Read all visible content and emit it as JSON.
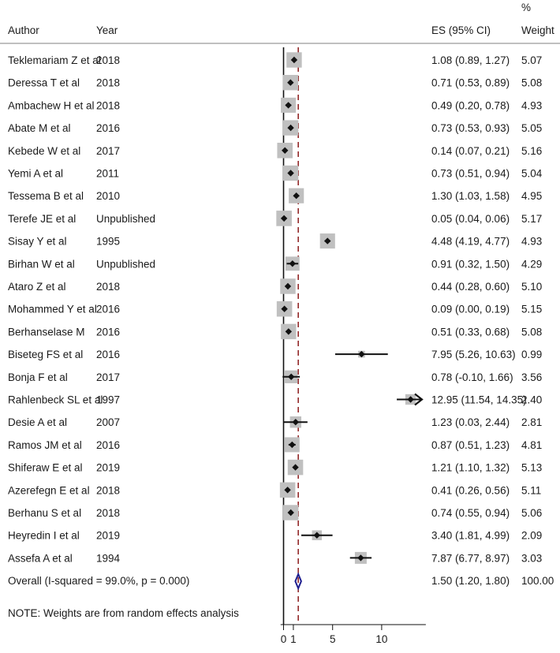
{
  "chart_data": {
    "type": "forest",
    "headers": {
      "author": "Author",
      "year": "Year",
      "es": "ES (95% CI)",
      "weight_top": "%",
      "weight": "Weight"
    },
    "studies": [
      {
        "author": "Teklemariam Z et al",
        "year": "2018",
        "es": 1.08,
        "lo": 0.89,
        "hi": 1.27,
        "ci_text": "1.08 (0.89, 1.27)",
        "weight": "5.07"
      },
      {
        "author": "Deressa T et al",
        "year": "2018",
        "es": 0.71,
        "lo": 0.53,
        "hi": 0.89,
        "ci_text": "0.71 (0.53, 0.89)",
        "weight": "5.08"
      },
      {
        "author": "Ambachew H et al",
        "year": "2018",
        "es": 0.49,
        "lo": 0.2,
        "hi": 0.78,
        "ci_text": "0.49 (0.20, 0.78)",
        "weight": "4.93"
      },
      {
        "author": "Abate M et al",
        "year": "2016",
        "es": 0.73,
        "lo": 0.53,
        "hi": 0.93,
        "ci_text": "0.73 (0.53, 0.93)",
        "weight": "5.05"
      },
      {
        "author": "Kebede W et al",
        "year": "2017",
        "es": 0.14,
        "lo": 0.07,
        "hi": 0.21,
        "ci_text": "0.14 (0.07, 0.21)",
        "weight": "5.16"
      },
      {
        "author": "Yemi A et al",
        "year": "2011",
        "es": 0.73,
        "lo": 0.51,
        "hi": 0.94,
        "ci_text": "0.73 (0.51, 0.94)",
        "weight": "5.04"
      },
      {
        "author": "Tessema B et al",
        "year": "2010",
        "es": 1.3,
        "lo": 1.03,
        "hi": 1.58,
        "ci_text": "1.30 (1.03, 1.58)",
        "weight": "4.95"
      },
      {
        "author": "Terefe JE et al",
        "year": "Unpublished",
        "es": 0.05,
        "lo": 0.04,
        "hi": 0.06,
        "ci_text": "0.05 (0.04, 0.06)",
        "weight": "5.17"
      },
      {
        "author": "Sisay Y et al",
        "year": "1995",
        "es": 4.48,
        "lo": 4.19,
        "hi": 4.77,
        "ci_text": "4.48 (4.19, 4.77)",
        "weight": "4.93"
      },
      {
        "author": "Birhan W et al",
        "year": "Unpublished",
        "es": 0.91,
        "lo": 0.32,
        "hi": 1.5,
        "ci_text": "0.91 (0.32, 1.50)",
        "weight": "4.29"
      },
      {
        "author": "Ataro Z et al",
        "year": "2018",
        "es": 0.44,
        "lo": 0.28,
        "hi": 0.6,
        "ci_text": "0.44 (0.28, 0.60)",
        "weight": "5.10"
      },
      {
        "author": "Mohammed Y et al",
        "year": "2016",
        "es": 0.09,
        "lo": 0.0,
        "hi": 0.19,
        "ci_text": "0.09 (0.00, 0.19)",
        "weight": "5.15"
      },
      {
        "author": "Berhanselase M",
        "year": "2016",
        "es": 0.51,
        "lo": 0.33,
        "hi": 0.68,
        "ci_text": "0.51 (0.33, 0.68)",
        "weight": "5.08"
      },
      {
        "author": "Biseteg FS et al",
        "year": "2016",
        "es": 7.95,
        "lo": 5.26,
        "hi": 10.63,
        "ci_text": "7.95 (5.26, 10.63)",
        "weight": "0.99"
      },
      {
        "author": "Bonja F et al",
        "year": "2017",
        "es": 0.78,
        "lo": -0.1,
        "hi": 1.66,
        "ci_text": "0.78 (-0.10, 1.66)",
        "weight": "3.56"
      },
      {
        "author": "Rahlenbeck SL et al",
        "year": "1997",
        "es": 12.95,
        "lo": 11.54,
        "hi": 14.35,
        "ci_text": "12.95 (11.54, 14.35)",
        "weight": "2.40",
        "arrow": true
      },
      {
        "author": "Desie A et al",
        "year": "2007",
        "es": 1.23,
        "lo": 0.03,
        "hi": 2.44,
        "ci_text": "1.23 (0.03, 2.44)",
        "weight": "2.81"
      },
      {
        "author": "Ramos JM et al",
        "year": "2016",
        "es": 0.87,
        "lo": 0.51,
        "hi": 1.23,
        "ci_text": "0.87 (0.51, 1.23)",
        "weight": "4.81"
      },
      {
        "author": "Shiferaw E et al",
        "year": "2019",
        "es": 1.21,
        "lo": 1.1,
        "hi": 1.32,
        "ci_text": "1.21 (1.10, 1.32)",
        "weight": "5.13"
      },
      {
        "author": "Azerefegn E et al",
        "year": "2018",
        "es": 0.41,
        "lo": 0.26,
        "hi": 0.56,
        "ci_text": "0.41 (0.26, 0.56)",
        "weight": "5.11"
      },
      {
        "author": "Berhanu S et al",
        "year": "2018",
        "es": 0.74,
        "lo": 0.55,
        "hi": 0.94,
        "ci_text": "0.74 (0.55, 0.94)",
        "weight": "5.06"
      },
      {
        "author": "Heyredin I et al",
        "year": "2019",
        "es": 3.4,
        "lo": 1.81,
        "hi": 4.99,
        "ci_text": "3.40 (1.81, 4.99)",
        "weight": "2.09"
      },
      {
        "author": "Assefa A et al",
        "year": "1994",
        "es": 7.87,
        "lo": 6.77,
        "hi": 8.97,
        "ci_text": "7.87 (6.77, 8.97)",
        "weight": "3.03"
      }
    ],
    "overall": {
      "label": "Overall  (I-squared = 99.0%, p = 0.000)",
      "es": 1.5,
      "lo": 1.2,
      "hi": 1.8,
      "ci_text": "1.50 (1.20, 1.80)",
      "weight": "100.00"
    },
    "note": "NOTE: Weights are from random effects analysis",
    "x_ticks": [
      {
        "value": 0,
        "label": "0"
      },
      {
        "value": 1,
        "label": "1"
      },
      {
        "value": 5,
        "label": "5"
      },
      {
        "value": 10,
        "label": "10"
      }
    ],
    "xlim": [
      -0.3,
      14.5
    ],
    "null_line": 0,
    "pooled_line": 1.5,
    "colors": {
      "box": "#c0c0c0",
      "point": "#111111",
      "ci_line": "#111111",
      "pooled_line": "#8b1a1a",
      "diamond": "#1f1f8f",
      "rule": "#9a9a9a"
    }
  }
}
